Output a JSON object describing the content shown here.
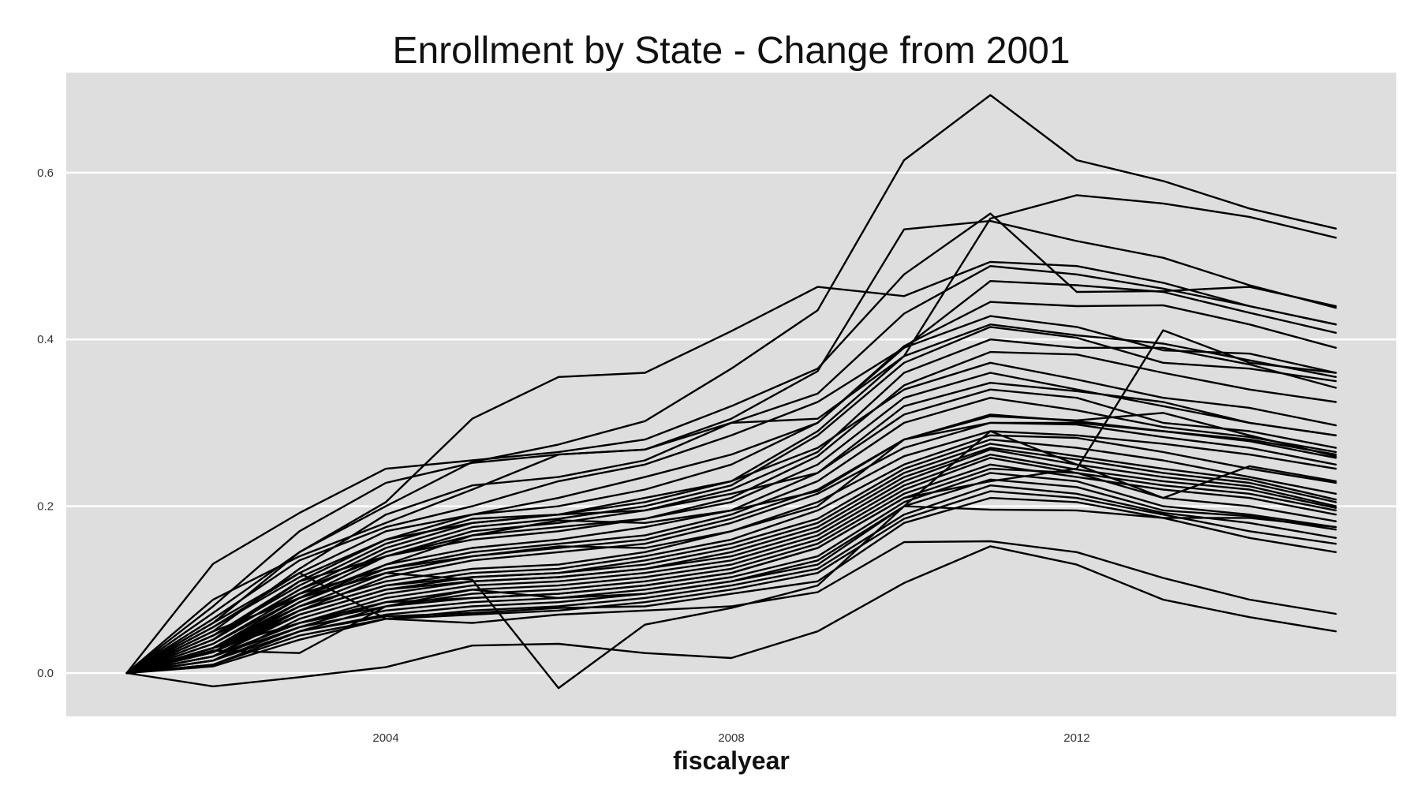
{
  "chart_data": {
    "type": "line",
    "title": "Enrollment by State - Change from 2001",
    "xlabel": "fiscalyear",
    "ylabel": "",
    "x": [
      2001,
      2002,
      2003,
      2004,
      2005,
      2006,
      2007,
      2008,
      2009,
      2010,
      2011,
      2012,
      2013,
      2014,
      2015
    ],
    "xlim": [
      2000.3,
      2015.7
    ],
    "ylim": [
      -0.052,
      0.72
    ],
    "x_ticks": [
      2004,
      2008,
      2012
    ],
    "x_tick_labels": [
      "2004",
      "2008",
      "2012"
    ],
    "y_ticks": [
      0.0,
      0.2,
      0.4,
      0.6
    ],
    "y_tick_labels": [
      "0.0",
      "0.2",
      "0.4",
      "0.6"
    ],
    "grid": true,
    "legend": "none",
    "colors": {
      "panel": "#dedede",
      "grid": "#ffffff",
      "lines": "#000000"
    },
    "series": [
      {
        "values": [
          0,
          0.072,
          0.145,
          0.2,
          0.253,
          0.274,
          0.302,
          0.365,
          0.435,
          0.615,
          0.693,
          0.615,
          0.59,
          0.557,
          0.533
        ]
      },
      {
        "values": [
          0,
          0.088,
          0.14,
          0.18,
          0.22,
          0.262,
          0.268,
          0.3,
          0.305,
          0.38,
          0.545,
          0.573,
          0.563,
          0.547,
          0.522
        ]
      },
      {
        "values": [
          0,
          0.131,
          0.192,
          0.245,
          0.255,
          0.265,
          0.28,
          0.32,
          0.365,
          0.478,
          0.551,
          0.457,
          0.458,
          0.463,
          0.44
        ]
      },
      {
        "values": [
          0,
          0.08,
          0.17,
          0.228,
          0.252,
          0.262,
          0.268,
          0.305,
          0.362,
          0.532,
          0.542,
          0.518,
          0.498,
          0.465,
          0.438
        ]
      },
      {
        "values": [
          0,
          0.06,
          0.145,
          0.205,
          0.305,
          0.355,
          0.36,
          0.41,
          0.463,
          0.452,
          0.493,
          0.488,
          0.468,
          0.44,
          0.418
        ]
      },
      {
        "values": [
          0,
          0.05,
          0.125,
          0.19,
          0.225,
          0.235,
          0.255,
          0.3,
          0.335,
          0.431,
          0.488,
          0.478,
          0.461,
          0.44,
          0.418
        ]
      },
      {
        "values": [
          0,
          0.065,
          0.135,
          0.175,
          0.2,
          0.23,
          0.25,
          0.285,
          0.325,
          0.39,
          0.47,
          0.465,
          0.457,
          0.432,
          0.408
        ]
      },
      {
        "values": [
          0,
          0.055,
          0.12,
          0.17,
          0.19,
          0.21,
          0.235,
          0.262,
          0.3,
          0.392,
          0.445,
          0.44,
          0.441,
          0.418,
          0.39
        ]
      },
      {
        "values": [
          0,
          0.045,
          0.11,
          0.16,
          0.19,
          0.2,
          0.22,
          0.25,
          0.3,
          0.39,
          0.428,
          0.415,
          0.387,
          0.383,
          0.36
        ]
      },
      {
        "values": [
          0,
          0.04,
          0.1,
          0.15,
          0.18,
          0.19,
          0.21,
          0.23,
          0.29,
          0.38,
          0.418,
          0.405,
          0.395,
          0.375,
          0.355
        ]
      },
      {
        "values": [
          0,
          0.035,
          0.095,
          0.145,
          0.175,
          0.185,
          0.2,
          0.225,
          0.285,
          0.372,
          0.415,
          0.402,
          0.372,
          0.365,
          0.35
        ]
      },
      {
        "values": [
          0,
          0.03,
          0.09,
          0.14,
          0.17,
          0.18,
          0.195,
          0.22,
          0.265,
          0.36,
          0.4,
          0.39,
          0.39,
          0.37,
          0.342
        ]
      },
      {
        "values": [
          0,
          0.025,
          0.085,
          0.13,
          0.165,
          0.175,
          0.185,
          0.21,
          0.26,
          0.345,
          0.385,
          0.382,
          0.36,
          0.34,
          0.325
        ]
      },
      {
        "values": [
          0,
          0.045,
          0.105,
          0.155,
          0.185,
          0.19,
          0.205,
          0.23,
          0.27,
          0.34,
          0.372,
          0.352,
          0.33,
          0.318,
          0.297
        ]
      },
      {
        "values": [
          0,
          0.04,
          0.1,
          0.14,
          0.16,
          0.17,
          0.185,
          0.205,
          0.25,
          0.33,
          0.36,
          0.34,
          0.32,
          0.3,
          0.285
        ]
      },
      {
        "values": [
          0,
          0.035,
          0.09,
          0.13,
          0.15,
          0.16,
          0.175,
          0.195,
          0.24,
          0.31,
          0.34,
          0.33,
          0.3,
          0.29,
          0.27
        ]
      },
      {
        "values": [
          0,
          0.03,
          0.085,
          0.125,
          0.145,
          0.155,
          0.165,
          0.19,
          0.23,
          0.3,
          0.33,
          0.315,
          0.295,
          0.283,
          0.265
        ]
      },
      {
        "values": [
          0,
          0.025,
          0.08,
          0.12,
          0.14,
          0.15,
          0.16,
          0.185,
          0.22,
          0.28,
          0.31,
          0.302,
          0.29,
          0.278,
          0.258
        ]
      },
      {
        "values": [
          0,
          0.02,
          0.075,
          0.115,
          0.135,
          0.145,
          0.155,
          0.18,
          0.215,
          0.27,
          0.3,
          0.298,
          0.283,
          0.27,
          0.25
        ]
      },
      {
        "values": [
          0,
          0.03,
          0.08,
          0.11,
          0.125,
          0.13,
          0.145,
          0.17,
          0.205,
          0.26,
          0.29,
          0.285,
          0.275,
          0.262,
          0.245
        ]
      },
      {
        "values": [
          0,
          0.025,
          0.075,
          0.105,
          0.12,
          0.125,
          0.14,
          0.16,
          0.195,
          0.25,
          0.285,
          0.282,
          0.265,
          0.245,
          0.228
        ]
      },
      {
        "values": [
          0,
          0.02,
          0.07,
          0.1,
          0.115,
          0.12,
          0.135,
          0.155,
          0.185,
          0.245,
          0.28,
          0.27,
          0.255,
          0.235,
          0.215
        ]
      },
      {
        "values": [
          0,
          0.03,
          0.075,
          0.105,
          0.115,
          0.12,
          0.13,
          0.15,
          0.18,
          0.24,
          0.275,
          0.26,
          0.245,
          0.232,
          0.208
        ]
      },
      {
        "values": [
          0,
          0.015,
          0.065,
          0.095,
          0.11,
          0.115,
          0.125,
          0.145,
          0.175,
          0.235,
          0.27,
          0.256,
          0.24,
          0.228,
          0.205
        ]
      },
      {
        "values": [
          0,
          0.025,
          0.07,
          0.1,
          0.11,
          0.115,
          0.125,
          0.14,
          0.17,
          0.23,
          0.268,
          0.25,
          0.235,
          0.224,
          0.2
        ]
      },
      {
        "values": [
          0,
          0.02,
          0.06,
          0.09,
          0.105,
          0.11,
          0.12,
          0.135,
          0.165,
          0.225,
          0.262,
          0.244,
          0.23,
          0.22,
          0.198
        ]
      },
      {
        "values": [
          0,
          0.015,
          0.055,
          0.085,
          0.1,
          0.105,
          0.115,
          0.13,
          0.16,
          0.22,
          0.258,
          0.24,
          0.225,
          0.215,
          0.195
        ]
      },
      {
        "values": [
          0,
          0.01,
          0.05,
          0.08,
          0.095,
          0.1,
          0.11,
          0.125,
          0.155,
          0.215,
          0.25,
          0.235,
          0.22,
          0.21,
          0.19
        ]
      },
      {
        "values": [
          0,
          0.03,
          0.06,
          0.08,
          0.09,
          0.095,
          0.105,
          0.12,
          0.15,
          0.21,
          0.245,
          0.24,
          0.21,
          0.2,
          0.182
        ]
      },
      {
        "values": [
          0,
          0.02,
          0.055,
          0.075,
          0.085,
          0.09,
          0.1,
          0.115,
          0.14,
          0.205,
          0.24,
          0.23,
          0.2,
          0.19,
          0.175
        ]
      },
      {
        "values": [
          0,
          0.015,
          0.05,
          0.07,
          0.08,
          0.085,
          0.095,
          0.11,
          0.135,
          0.2,
          0.232,
          0.223,
          0.195,
          0.188,
          0.172
        ]
      },
      {
        "values": [
          0,
          0.01,
          0.045,
          0.065,
          0.075,
          0.08,
          0.09,
          0.105,
          0.125,
          0.19,
          0.225,
          0.215,
          0.192,
          0.18,
          0.162
        ]
      },
      {
        "values": [
          0,
          0.008,
          0.04,
          0.065,
          0.07,
          0.075,
          0.085,
          0.1,
          0.12,
          0.185,
          0.218,
          0.21,
          0.19,
          0.17,
          0.155
        ]
      },
      {
        "values": [
          0,
          0.01,
          0.05,
          0.068,
          0.072,
          0.078,
          0.08,
          0.095,
          0.11,
          0.18,
          0.21,
          0.205,
          0.186,
          0.162,
          0.145
        ]
      },
      {
        "values": [
          0,
          0.027,
          0.024,
          0.08,
          0.1,
          0.09,
          0.095,
          0.11,
          0.13,
          0.2,
          0.196,
          0.195,
          0.186,
          0.186,
          0.175
        ]
      },
      {
        "values": [
          0,
          0.02,
          0.06,
          0.085,
          0.09,
          0.095,
          0.105,
          0.12,
          0.15,
          0.21,
          0.23,
          0.245,
          0.411,
          0.372,
          0.36
        ]
      },
      {
        "values": [
          0,
          0.06,
          0.12,
          0.065,
          0.06,
          0.07,
          0.075,
          0.08,
          0.097,
          0.157,
          0.158,
          0.145,
          0.114,
          0.088,
          0.071
        ]
      },
      {
        "values": [
          0,
          -0.016,
          -0.005,
          0.007,
          0.033,
          0.035,
          0.024,
          0.018,
          0.05,
          0.108,
          0.152,
          0.13,
          0.088,
          0.067,
          0.05
        ]
      },
      {
        "values": [
          0,
          0.05,
          0.09,
          0.12,
          0.112,
          -0.018,
          0.058,
          0.078,
          0.105,
          0.2,
          0.29,
          0.25,
          0.21,
          0.248,
          0.23
        ]
      },
      {
        "values": [
          0,
          0.04,
          0.11,
          0.14,
          0.165,
          0.183,
          0.18,
          0.195,
          0.218,
          0.28,
          0.308,
          0.303,
          0.312,
          0.285,
          0.26
        ]
      },
      {
        "values": [
          0,
          0.055,
          0.115,
          0.16,
          0.18,
          0.19,
          0.195,
          0.215,
          0.24,
          0.32,
          0.348,
          0.338,
          0.325,
          0.3,
          0.285
        ]
      },
      {
        "values": [
          0,
          0.045,
          0.095,
          0.125,
          0.14,
          0.152,
          0.15,
          0.17,
          0.2,
          0.28,
          0.3,
          0.3,
          0.29,
          0.28,
          0.262
        ]
      }
    ]
  }
}
